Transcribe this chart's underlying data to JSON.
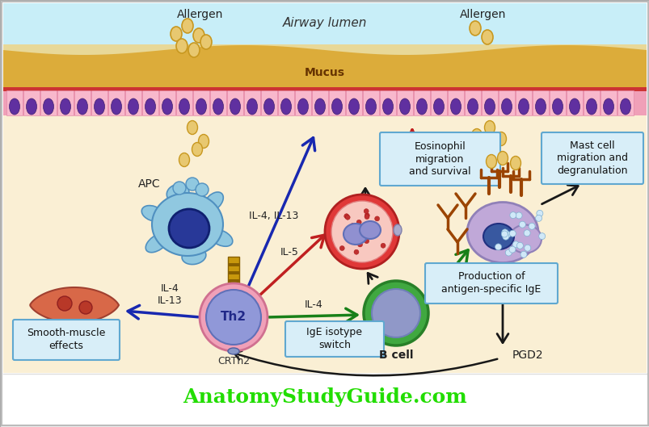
{
  "bg_color": "#faefd4",
  "white_bg": "#ffffff",
  "title_text": "AnatomyStudyGuide.com",
  "title_color": "#22dd00",
  "airway_lumen_top": "#c8eef8",
  "airway_lumen_bot": "#e8d898",
  "mucus_color": "#e8c860",
  "epithelium_color": "#f0a0b8",
  "epi_red_stripe": "#cc3333",
  "subepithelium_color": "#faefd4",
  "allergen_fill": "#e8c870",
  "allergen_edge": "#c89820",
  "text_allergen1": "Allergen",
  "text_allergen2": "Allergen",
  "text_airway": "Airway lumen",
  "text_mucus": "Mucus",
  "text_apc": "APC",
  "text_th2": "Th2",
  "text_crth2": "CRTh2",
  "text_bcell": "B cell",
  "text_il4_il13_arrow": "IL-4, IL-13",
  "text_il5": "IL-5",
  "text_il4": "IL-4",
  "text_il4_il13_left": "IL-4\nIL-13",
  "text_ige_box": "IgE isotype\nswitch",
  "text_eosinophil_box": "Eosinophil\nmigration\nand survival",
  "text_mastcell_box": "Mast cell\nmigration and\ndegranulation",
  "text_smooth_box": "Smooth-muscle\neffects",
  "text_production_box": "Production of\nantigen-specific IgE",
  "text_pgd2": "PGD2",
  "apc_body_color": "#90c8e0",
  "apc_nucleus_color": "#283898",
  "th2_outer_color": "#f0a0b8",
  "th2_inner_color": "#9098d8",
  "th2_text_color": "#202888",
  "bcell_outer_color": "#40a840",
  "bcell_inner_color": "#9098c8",
  "eosinophil_outer": "#e03838",
  "eosinophil_inner_bg": "#f8c8c0",
  "eosinophil_nucleus": "#9090d0",
  "mastcell_body": "#c0a8d8",
  "mastcell_nucleus": "#3858a0",
  "smooth_muscle_color": "#d86848",
  "smooth_muscle_nucleus": "#b04030",
  "arrow_blue": "#1828b0",
  "arrow_dark_blue": "#1828b0",
  "arrow_red": "#c02020",
  "arrow_green": "#188018",
  "arrow_black": "#181818",
  "box_border": "#60a8d0",
  "box_fill": "#d8eef8",
  "connector_gold": "#c8980c",
  "connector_gold_dark": "#886000"
}
